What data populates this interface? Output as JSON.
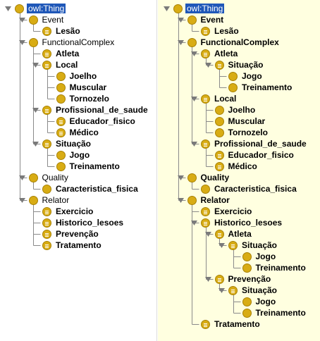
{
  "colors": {
    "left_background": "#ffffff",
    "right_background": "#ffffe0",
    "class_icon": "#d8ac14",
    "class_icon_border": "#a88205",
    "selection": "#1f57b8",
    "tree_line": "#8a8a8a",
    "toggle_arrow": "#7a7a7a"
  },
  "left_tree": {
    "nodes": [
      {
        "label": "owl:Thing",
        "depth": 0,
        "toggle": "expanded",
        "icon": "class-icon",
        "bold": false,
        "selected": true
      },
      {
        "label": "Event",
        "depth": 1,
        "toggle": "expanded",
        "icon": "class-icon",
        "bold": false
      },
      {
        "label": "Lesão",
        "depth": 2,
        "toggle": "none",
        "icon": "defined-class-icon",
        "bold": true
      },
      {
        "label": "FunctionalComplex",
        "depth": 1,
        "toggle": "expanded",
        "icon": "class-icon",
        "bold": false
      },
      {
        "label": "Atleta",
        "depth": 2,
        "toggle": "none",
        "icon": "defined-class-icon",
        "bold": true
      },
      {
        "label": "Local",
        "depth": 2,
        "toggle": "expanded",
        "icon": "defined-class-icon",
        "bold": true
      },
      {
        "label": "Joelho",
        "depth": 3,
        "toggle": "none",
        "icon": "class-icon",
        "bold": true
      },
      {
        "label": "Muscular",
        "depth": 3,
        "toggle": "none",
        "icon": "class-icon",
        "bold": true
      },
      {
        "label": "Tornozelo",
        "depth": 3,
        "toggle": "none",
        "icon": "class-icon",
        "bold": true
      },
      {
        "label": "Profissional_de_saude",
        "depth": 2,
        "toggle": "expanded",
        "icon": "defined-class-icon",
        "bold": true
      },
      {
        "label": "Educador_fisico",
        "depth": 3,
        "toggle": "none",
        "icon": "defined-class-icon",
        "bold": true
      },
      {
        "label": "Médico",
        "depth": 3,
        "toggle": "none",
        "icon": "defined-class-icon",
        "bold": true
      },
      {
        "label": "Situação",
        "depth": 2,
        "toggle": "expanded",
        "icon": "defined-class-icon",
        "bold": true
      },
      {
        "label": "Jogo",
        "depth": 3,
        "toggle": "none",
        "icon": "class-icon",
        "bold": true
      },
      {
        "label": "Treinamento",
        "depth": 3,
        "toggle": "none",
        "icon": "class-icon",
        "bold": true
      },
      {
        "label": "Quality",
        "depth": 1,
        "toggle": "expanded",
        "icon": "class-icon",
        "bold": false
      },
      {
        "label": "Caracteristica_fisica",
        "depth": 2,
        "toggle": "none",
        "icon": "class-icon",
        "bold": true
      },
      {
        "label": "Relator",
        "depth": 1,
        "toggle": "expanded",
        "icon": "class-icon",
        "bold": false
      },
      {
        "label": "Exercicio",
        "depth": 2,
        "toggle": "none",
        "icon": "defined-class-icon",
        "bold": true
      },
      {
        "label": "Historico_lesoes",
        "depth": 2,
        "toggle": "none",
        "icon": "defined-class-icon",
        "bold": true
      },
      {
        "label": "Prevenção",
        "depth": 2,
        "toggle": "none",
        "icon": "defined-class-icon",
        "bold": true
      },
      {
        "label": "Tratamento",
        "depth": 2,
        "toggle": "none",
        "icon": "defined-class-icon",
        "bold": true
      }
    ]
  },
  "right_tree": {
    "nodes": [
      {
        "label": "owl:Thing",
        "depth": 0,
        "toggle": "expanded",
        "icon": "class-icon",
        "bold": false,
        "selected": true
      },
      {
        "label": "Event",
        "depth": 1,
        "toggle": "expanded",
        "icon": "class-icon",
        "bold": true
      },
      {
        "label": "Lesão",
        "depth": 2,
        "toggle": "none",
        "icon": "defined-class-icon",
        "bold": true
      },
      {
        "label": "FunctionalComplex",
        "depth": 1,
        "toggle": "expanded",
        "icon": "class-icon",
        "bold": true
      },
      {
        "label": "Atleta",
        "depth": 2,
        "toggle": "expanded",
        "icon": "defined-class-icon",
        "bold": true
      },
      {
        "label": "Situação",
        "depth": 3,
        "toggle": "expanded",
        "icon": "defined-class-icon",
        "bold": true
      },
      {
        "label": "Jogo",
        "depth": 4,
        "toggle": "none",
        "icon": "class-icon",
        "bold": true
      },
      {
        "label": "Treinamento",
        "depth": 4,
        "toggle": "none",
        "icon": "class-icon",
        "bold": true
      },
      {
        "label": "Local",
        "depth": 2,
        "toggle": "expanded",
        "icon": "defined-class-icon",
        "bold": true
      },
      {
        "label": "Joelho",
        "depth": 3,
        "toggle": "none",
        "icon": "class-icon",
        "bold": true
      },
      {
        "label": "Muscular",
        "depth": 3,
        "toggle": "none",
        "icon": "class-icon",
        "bold": true
      },
      {
        "label": "Tornozelo",
        "depth": 3,
        "toggle": "none",
        "icon": "class-icon",
        "bold": true
      },
      {
        "label": "Profissional_de_saude",
        "depth": 2,
        "toggle": "expanded",
        "icon": "defined-class-icon",
        "bold": true
      },
      {
        "label": "Educador_fisico",
        "depth": 3,
        "toggle": "none",
        "icon": "defined-class-icon",
        "bold": true
      },
      {
        "label": "Médico",
        "depth": 3,
        "toggle": "none",
        "icon": "defined-class-icon",
        "bold": true
      },
      {
        "label": "Quality",
        "depth": 1,
        "toggle": "expanded",
        "icon": "class-icon",
        "bold": true
      },
      {
        "label": "Caracteristica_fisica",
        "depth": 2,
        "toggle": "none",
        "icon": "class-icon",
        "bold": true
      },
      {
        "label": "Relator",
        "depth": 1,
        "toggle": "expanded",
        "icon": "class-icon",
        "bold": true
      },
      {
        "label": "Exercicio",
        "depth": 2,
        "toggle": "none",
        "icon": "defined-class-icon",
        "bold": true
      },
      {
        "label": "Historico_lesoes",
        "depth": 2,
        "toggle": "expanded",
        "icon": "defined-class-icon",
        "bold": true
      },
      {
        "label": "Atleta",
        "depth": 3,
        "toggle": "expanded",
        "icon": "defined-class-icon",
        "bold": true
      },
      {
        "label": "Situação",
        "depth": 4,
        "toggle": "expanded",
        "icon": "defined-class-icon",
        "bold": true
      },
      {
        "label": "Jogo",
        "depth": 5,
        "toggle": "none",
        "icon": "class-icon",
        "bold": true
      },
      {
        "label": "Treinamento",
        "depth": 5,
        "toggle": "none",
        "icon": "class-icon",
        "bold": true
      },
      {
        "label": "Prevenção",
        "depth": 3,
        "toggle": "expanded",
        "icon": "defined-class-icon",
        "bold": true
      },
      {
        "label": "Situação",
        "depth": 4,
        "toggle": "expanded",
        "icon": "defined-class-icon",
        "bold": true
      },
      {
        "label": "Jogo",
        "depth": 5,
        "toggle": "none",
        "icon": "class-icon",
        "bold": true
      },
      {
        "label": "Treinamento",
        "depth": 5,
        "toggle": "none",
        "icon": "class-icon",
        "bold": true
      },
      {
        "label": "Tratamento",
        "depth": 2,
        "toggle": "none",
        "icon": "defined-class-icon",
        "bold": true
      }
    ]
  }
}
